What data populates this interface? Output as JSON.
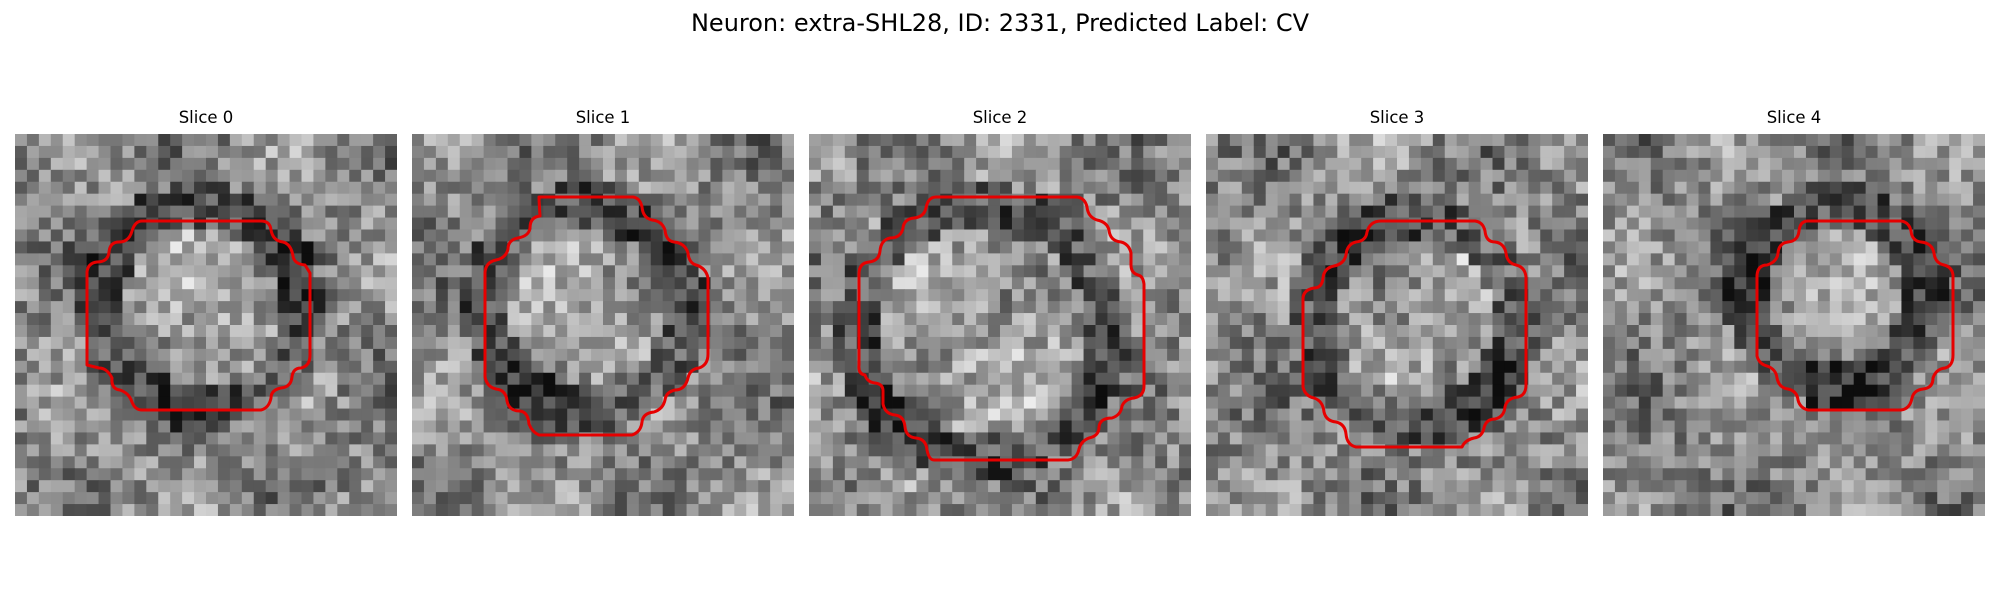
{
  "figure": {
    "title": "Neuron: extra-SHL28, ID: 2331, Predicted Label: CV"
  },
  "colors": {
    "contour": "#e60000",
    "background": "#ffffff"
  },
  "panels": [
    {
      "title": "Slice 0",
      "dark_pixel_level": 0.42,
      "contour_shape": "octagon-small"
    },
    {
      "title": "Slice 1",
      "dark_pixel_level": 0.45,
      "contour_shape": "octagon-medium"
    },
    {
      "title": "Slice 2",
      "dark_pixel_level": 0.35,
      "contour_shape": "octagon-large"
    },
    {
      "title": "Slice 3",
      "dark_pixel_level": 0.38,
      "contour_shape": "octagon-medium"
    },
    {
      "title": "Slice 4",
      "dark_pixel_level": 0.48,
      "contour_shape": "octagon-small"
    }
  ]
}
